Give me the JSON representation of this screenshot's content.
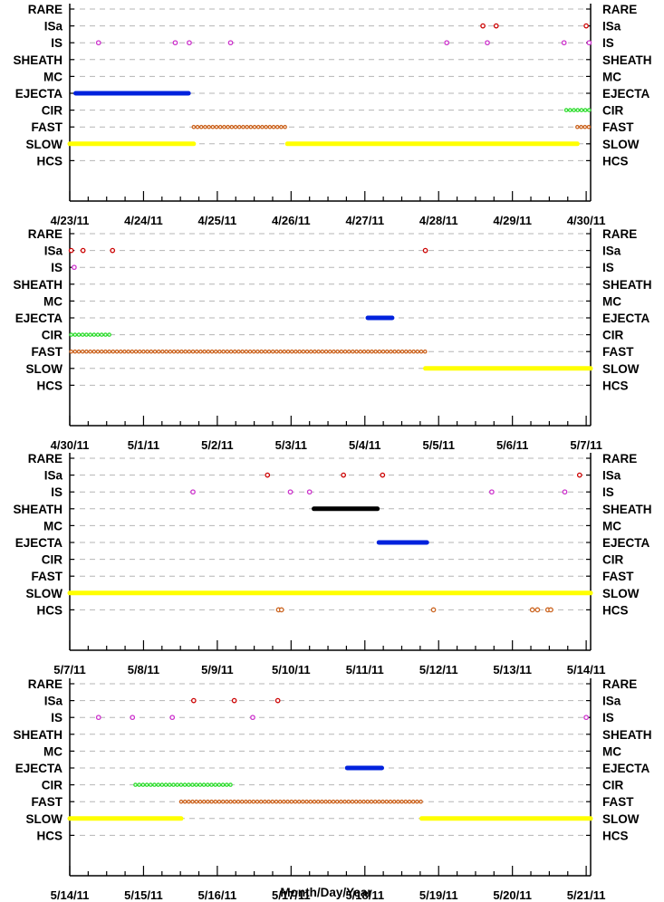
{
  "chart_data": {
    "type": "scatter",
    "xlabel": "Month/Day/Year",
    "categories": [
      "RARE",
      "ISa",
      "IS",
      "SHEATH",
      "MC",
      "EJECTA",
      "CIR",
      "FAST",
      "SLOW",
      "HCS"
    ],
    "colors": {
      "ISa": "#cc0000",
      "IS": "#cc33cc",
      "SHEATH": "#000000",
      "EJECTA": "#0022dd",
      "CIR": "#33dd33",
      "FAST": "#cc6622",
      "SLOW": "#ffff00",
      "HCS": "#cc6622"
    },
    "grid": true,
    "panels": [
      {
        "xlim": [
          0,
          7.06
        ],
        "ticks": [
          "4/23/11",
          "4/24/11",
          "4/25/11",
          "4/26/11",
          "4/27/11",
          "4/28/11",
          "4/29/11",
          "4/30/11"
        ],
        "series": [
          {
            "category": "ISa",
            "points": [
              5.6,
              5.78,
              7.0
            ]
          },
          {
            "category": "IS",
            "points": [
              0.39,
              1.43,
              1.62,
              2.18,
              5.11,
              5.66,
              6.7,
              7.04
            ]
          },
          {
            "category": "EJECTA",
            "ranges": [
              [
                0.08,
                1.61
              ]
            ]
          },
          {
            "category": "CIR",
            "ranges": [
              [
                6.73,
                7.06
              ]
            ]
          },
          {
            "category": "FAST",
            "ranges": [
              [
                1.68,
                2.95
              ],
              [
                6.88,
                7.06
              ]
            ]
          },
          {
            "category": "SLOW",
            "ranges": [
              [
                0.0,
                1.68
              ],
              [
                2.95,
                6.88
              ]
            ]
          }
        ]
      },
      {
        "xlim": [
          0,
          7.06
        ],
        "ticks": [
          "4/30/11",
          "5/1/11",
          "5/2/11",
          "5/3/11",
          "5/4/11",
          "5/5/11",
          "5/6/11",
          "5/7/11"
        ],
        "series": [
          {
            "category": "ISa",
            "points": [
              0.02,
              0.18,
              0.58,
              4.82
            ]
          },
          {
            "category": "IS",
            "points": [
              0.06
            ]
          },
          {
            "category": "EJECTA",
            "ranges": [
              [
                4.04,
                4.37
              ]
            ]
          },
          {
            "category": "CIR",
            "ranges": [
              [
                0.02,
                0.58
              ]
            ]
          },
          {
            "category": "FAST",
            "ranges": [
              [
                0.02,
                4.82
              ]
            ]
          },
          {
            "category": "SLOW",
            "ranges": [
              [
                4.82,
                7.06
              ]
            ]
          }
        ]
      },
      {
        "xlim": [
          0,
          7.06
        ],
        "ticks": [
          "5/7/11",
          "5/8/11",
          "5/9/11",
          "5/10/11",
          "5/11/11",
          "5/12/11",
          "5/13/11",
          "5/14/11"
        ],
        "series": [
          {
            "category": "ISa",
            "points": [
              2.68,
              3.71,
              4.24,
              6.91
            ]
          },
          {
            "category": "IS",
            "points": [
              1.67,
              2.99,
              3.25,
              5.72,
              6.71
            ]
          },
          {
            "category": "SHEATH",
            "ranges": [
              [
                3.31,
                4.17
              ]
            ]
          },
          {
            "category": "EJECTA",
            "ranges": [
              [
                4.19,
                4.84
              ]
            ]
          },
          {
            "category": "SLOW",
            "ranges": [
              [
                0.0,
                7.06
              ]
            ]
          },
          {
            "category": "HCS",
            "points": [
              2.83,
              2.87,
              4.93,
              6.27,
              6.34,
              6.48,
              6.52
            ]
          }
        ]
      },
      {
        "xlim": [
          0,
          7.06
        ],
        "ticks": [
          "5/14/11",
          "5/15/11",
          "5/16/11",
          "5/17/11",
          "5/18/11",
          "5/19/11",
          "5/20/11",
          "5/21/11"
        ],
        "series": [
          {
            "category": "ISa",
            "points": [
              1.68,
              2.23,
              2.82
            ]
          },
          {
            "category": "IS",
            "points": [
              0.39,
              0.85,
              1.39,
              2.48,
              7.0
            ]
          },
          {
            "category": "EJECTA",
            "ranges": [
              [
                3.76,
                4.23
              ]
            ]
          },
          {
            "category": "CIR",
            "ranges": [
              [
                0.89,
                2.22
              ]
            ]
          },
          {
            "category": "FAST",
            "ranges": [
              [
                1.51,
                4.77
              ]
            ]
          },
          {
            "category": "SLOW",
            "ranges": [
              [
                0.0,
                1.51
              ],
              [
                4.77,
                7.06
              ]
            ]
          }
        ]
      }
    ]
  }
}
